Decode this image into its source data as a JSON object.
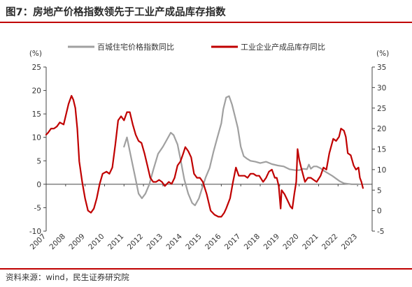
{
  "header": {
    "title": "图7：房地产价格指数领先于工业产成品库存指数"
  },
  "footer": {
    "source": "资料来源：wind，民生证券研究院"
  },
  "colors": {
    "rule": "#c00000",
    "series_gray": "#a0a0a0",
    "series_red": "#c00000"
  },
  "chart_data": {
    "type": "line",
    "left_axis": {
      "unit": "(%)",
      "ylim": [
        -10,
        25
      ],
      "ticks": [
        -10,
        -5,
        0,
        5,
        10,
        15,
        20,
        25
      ]
    },
    "right_axis": {
      "unit": "(%)",
      "ylim": [
        -5,
        35
      ],
      "ticks": [
        -5,
        0,
        5,
        10,
        15,
        20,
        25,
        30,
        35
      ]
    },
    "x_axis": {
      "range": [
        2007,
        2023.75
      ],
      "tick_labels": [
        "2007",
        "2008",
        "2009",
        "2010",
        "2011",
        "2012",
        "2013",
        "2014",
        "2015",
        "2016",
        "2017",
        "2018",
        "2019",
        "2020",
        "2021",
        "2022",
        "2023"
      ]
    },
    "grid": false,
    "legend_position": "top",
    "series": [
      {
        "name": "百城住宅价格指数同比",
        "axis": "left",
        "color": "#a0a0a0",
        "points": [
          [
            2011.0,
            8.0
          ],
          [
            2011.15,
            10.0
          ],
          [
            2011.4,
            5.0
          ],
          [
            2011.6,
            1.0
          ],
          [
            2011.75,
            -2.0
          ],
          [
            2011.92,
            -3.0
          ],
          [
            2012.1,
            -2.0
          ],
          [
            2012.3,
            0.0
          ],
          [
            2012.5,
            3.0
          ],
          [
            2012.75,
            6.5
          ],
          [
            2013.0,
            8.0
          ],
          [
            2013.2,
            9.5
          ],
          [
            2013.4,
            11.0
          ],
          [
            2013.55,
            10.5
          ],
          [
            2013.75,
            8.5
          ],
          [
            2013.92,
            5.0
          ],
          [
            2014.1,
            1.0
          ],
          [
            2014.3,
            -2.0
          ],
          [
            2014.5,
            -4.0
          ],
          [
            2014.65,
            -4.5
          ],
          [
            2014.85,
            -3.0
          ],
          [
            2015.0,
            -1.0
          ],
          [
            2015.2,
            1.5
          ],
          [
            2015.4,
            3.5
          ],
          [
            2015.6,
            7.0
          ],
          [
            2015.8,
            10.0
          ],
          [
            2016.0,
            13.0
          ],
          [
            2016.1,
            16.0
          ],
          [
            2016.25,
            18.5
          ],
          [
            2016.4,
            18.8
          ],
          [
            2016.55,
            17.0
          ],
          [
            2016.7,
            14.5
          ],
          [
            2016.85,
            12.0
          ],
          [
            2017.0,
            8.0
          ],
          [
            2017.15,
            6.0
          ],
          [
            2017.3,
            5.5
          ],
          [
            2017.5,
            5.0
          ],
          [
            2017.75,
            4.8
          ],
          [
            2018.0,
            4.5
          ],
          [
            2018.3,
            4.8
          ],
          [
            2018.6,
            4.3
          ],
          [
            2018.9,
            4.0
          ],
          [
            2019.2,
            3.8
          ],
          [
            2019.5,
            3.2
          ],
          [
            2019.8,
            3.0
          ],
          [
            2020.0,
            3.0
          ],
          [
            2020.2,
            3.3
          ],
          [
            2020.4,
            3.2
          ],
          [
            2020.5,
            4.2
          ],
          [
            2020.6,
            3.3
          ],
          [
            2020.75,
            3.8
          ],
          [
            2020.9,
            3.8
          ],
          [
            2021.1,
            3.4
          ],
          [
            2021.3,
            2.8
          ],
          [
            2021.5,
            2.3
          ],
          [
            2021.7,
            1.8
          ],
          [
            2021.9,
            1.2
          ],
          [
            2022.1,
            0.6
          ],
          [
            2022.3,
            0.2
          ],
          [
            2022.5,
            0.1
          ],
          [
            2022.7,
            0.0
          ],
          [
            2022.9,
            0.0
          ],
          [
            2023.05,
            0.0
          ]
        ]
      },
      {
        "name": "工业企业产成品库存同比",
        "axis": "right",
        "color": "#c00000",
        "points": [
          [
            2007.0,
            18.5
          ],
          [
            2007.1,
            19.0
          ],
          [
            2007.25,
            20.0
          ],
          [
            2007.4,
            20.0
          ],
          [
            2007.55,
            20.5
          ],
          [
            2007.7,
            21.5
          ],
          [
            2007.9,
            21.0
          ],
          [
            2008.0,
            23.0
          ],
          [
            2008.15,
            26.0
          ],
          [
            2008.3,
            28.0
          ],
          [
            2008.4,
            27.0
          ],
          [
            2008.5,
            25.0
          ],
          [
            2008.6,
            20.0
          ],
          [
            2008.7,
            12.0
          ],
          [
            2008.85,
            7.0
          ],
          [
            2009.0,
            3.0
          ],
          [
            2009.15,
            0.0
          ],
          [
            2009.3,
            -0.5
          ],
          [
            2009.45,
            0.5
          ],
          [
            2009.6,
            3.0
          ],
          [
            2009.75,
            6.5
          ],
          [
            2009.9,
            9.0
          ],
          [
            2010.1,
            9.5
          ],
          [
            2010.25,
            9.0
          ],
          [
            2010.4,
            10.5
          ],
          [
            2010.55,
            16.0
          ],
          [
            2010.7,
            22.0
          ],
          [
            2010.85,
            23.0
          ],
          [
            2011.0,
            22.0
          ],
          [
            2011.15,
            24.0
          ],
          [
            2011.3,
            24.0
          ],
          [
            2011.45,
            21.0
          ],
          [
            2011.6,
            18.5
          ],
          [
            2011.75,
            17.0
          ],
          [
            2011.9,
            16.5
          ],
          [
            2012.05,
            14.0
          ],
          [
            2012.2,
            11.0
          ],
          [
            2012.35,
            8.0
          ],
          [
            2012.5,
            7.0
          ],
          [
            2012.65,
            7.0
          ],
          [
            2012.8,
            7.5
          ],
          [
            2012.95,
            7.0
          ],
          [
            2013.1,
            6.0
          ],
          [
            2013.3,
            7.0
          ],
          [
            2013.45,
            6.5
          ],
          [
            2013.6,
            8.0
          ],
          [
            2013.75,
            11.0
          ],
          [
            2013.9,
            12.0
          ],
          [
            2014.05,
            14.0
          ],
          [
            2014.15,
            15.5
          ],
          [
            2014.3,
            14.5
          ],
          [
            2014.45,
            13.0
          ],
          [
            2014.6,
            9.0
          ],
          [
            2014.75,
            8.0
          ],
          [
            2014.9,
            8.0
          ],
          [
            2015.05,
            7.0
          ],
          [
            2015.25,
            4.0
          ],
          [
            2015.45,
            0.0
          ],
          [
            2015.65,
            -1.0
          ],
          [
            2015.85,
            -1.5
          ],
          [
            2016.0,
            -1.5
          ],
          [
            2016.15,
            -0.5
          ],
          [
            2016.25,
            0.5
          ],
          [
            2016.45,
            3.0
          ],
          [
            2016.6,
            7.0
          ],
          [
            2016.75,
            10.5
          ],
          [
            2016.9,
            8.5
          ],
          [
            2017.05,
            8.5
          ],
          [
            2017.2,
            8.5
          ],
          [
            2017.35,
            8.0
          ],
          [
            2017.5,
            9.0
          ],
          [
            2017.65,
            9.0
          ],
          [
            2017.8,
            8.5
          ],
          [
            2017.95,
            8.5
          ],
          [
            2018.15,
            7.0
          ],
          [
            2018.3,
            8.0
          ],
          [
            2018.45,
            9.5
          ],
          [
            2018.6,
            10.0
          ],
          [
            2018.75,
            8.0
          ],
          [
            2018.85,
            8.0
          ],
          [
            2018.95,
            6.0
          ],
          [
            2019.05,
            0.5
          ],
          [
            2019.1,
            5.0
          ],
          [
            2019.25,
            4.0
          ],
          [
            2019.4,
            2.5
          ],
          [
            2019.55,
            1.0
          ],
          [
            2019.65,
            0.5
          ],
          [
            2019.75,
            4.0
          ],
          [
            2019.85,
            7.0
          ],
          [
            2019.92,
            15.0
          ],
          [
            2020.0,
            12.5
          ],
          [
            2020.1,
            10.5
          ],
          [
            2020.3,
            7.0
          ],
          [
            2020.45,
            8.0
          ],
          [
            2020.6,
            8.0
          ],
          [
            2020.75,
            7.5
          ],
          [
            2020.9,
            7.0
          ],
          [
            2021.1,
            8.5
          ],
          [
            2021.25,
            10.5
          ],
          [
            2021.4,
            10.0
          ],
          [
            2021.55,
            14.0
          ],
          [
            2021.75,
            17.5
          ],
          [
            2021.9,
            17.0
          ],
          [
            2022.05,
            18.0
          ],
          [
            2022.15,
            20.0
          ],
          [
            2022.3,
            19.5
          ],
          [
            2022.4,
            18.0
          ],
          [
            2022.5,
            14.0
          ],
          [
            2022.65,
            13.5
          ],
          [
            2022.8,
            11.0
          ],
          [
            2022.92,
            10.0
          ],
          [
            2023.05,
            10.5
          ],
          [
            2023.12,
            8.0
          ],
          [
            2023.2,
            7.0
          ],
          [
            2023.28,
            5.5
          ]
        ]
      }
    ]
  }
}
